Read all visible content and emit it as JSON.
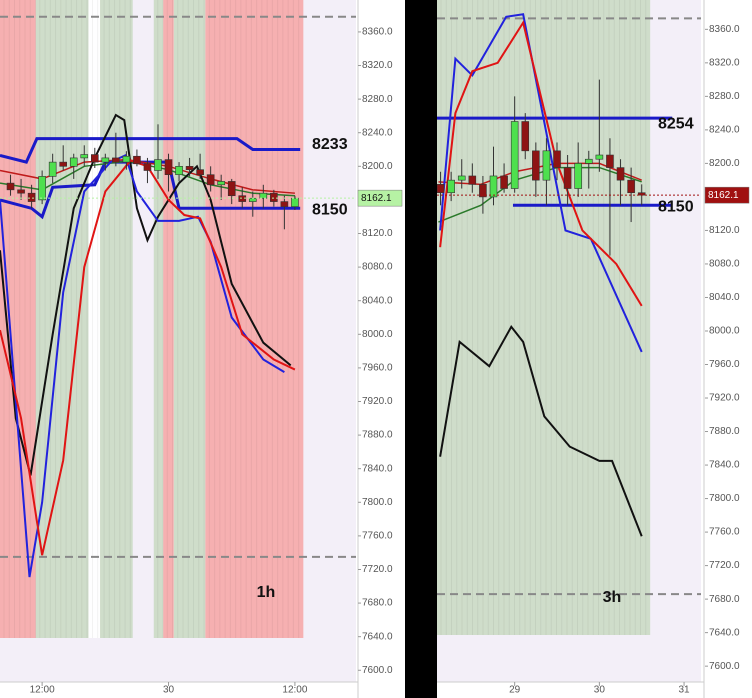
{
  "chart_data": [
    {
      "type": "candlestick",
      "label": "1h",
      "xlim": [
        8,
        41.8
      ],
      "ylim": [
        7567,
        8398
      ],
      "xticks": [
        {
          "value": 12,
          "label": "12:00"
        },
        {
          "value": 24,
          "label": "30"
        },
        {
          "value": 36,
          "label": "12:00"
        }
      ],
      "yticks": [
        {
          "value": 7600,
          "label": "7600.0"
        },
        {
          "value": 7640,
          "label": "7640.0"
        },
        {
          "value": 7680,
          "label": "7680.0"
        },
        {
          "value": 7720,
          "label": "7720.0"
        },
        {
          "value": 7760,
          "label": "7760.0"
        },
        {
          "value": 7800,
          "label": "7800.0"
        },
        {
          "value": 7840,
          "label": "7840.0"
        },
        {
          "value": 7880,
          "label": "7880.0"
        },
        {
          "value": 7920,
          "label": "7920.0"
        },
        {
          "value": 7960,
          "label": "7960.0"
        },
        {
          "value": 8000,
          "label": "8000.0"
        },
        {
          "value": 8040,
          "label": "8040.0"
        },
        {
          "value": 8080,
          "label": "8080.0"
        },
        {
          "value": 8120,
          "label": "8120.0"
        },
        {
          "value": 8160,
          "label": "8160.0"
        },
        {
          "value": 8200,
          "label": "8200.0"
        },
        {
          "value": 8240,
          "label": "8240.0"
        },
        {
          "value": 8280,
          "label": "8280.0"
        },
        {
          "value": 8320,
          "label": "8320.0"
        },
        {
          "value": 8360,
          "label": "8360.0"
        }
      ],
      "zones": [
        {
          "start": 8,
          "end": 11.4,
          "color": "#f6a9a9"
        },
        {
          "start": 11.4,
          "end": 16.4,
          "color": "#cbdac4"
        },
        {
          "start": 16.4,
          "end": 17.5,
          "color": "#ffffff"
        },
        {
          "start": 17.5,
          "end": 20.6,
          "color": "#cbdac4"
        },
        {
          "start": 22.6,
          "end": 23.5,
          "color": "#cbdac4"
        },
        {
          "start": 23.5,
          "end": 24.5,
          "color": "#f6a9a9"
        },
        {
          "start": 24.5,
          "end": 27.5,
          "color": "#cbdac4"
        },
        {
          "start": 27.5,
          "end": 36.8,
          "color": "#f6a9a9"
        }
      ],
      "x": [
        9,
        10,
        11,
        12,
        13,
        14,
        15,
        16,
        17,
        18,
        19,
        20,
        21,
        22,
        23,
        24,
        25,
        26,
        27,
        28,
        29,
        30,
        31,
        32,
        33,
        34,
        35,
        36
      ],
      "open": [
        8180,
        8172,
        8168,
        8160,
        8188,
        8205,
        8200,
        8210,
        8214,
        8205,
        8210,
        8205,
        8212,
        8203,
        8195,
        8208,
        8190,
        8200,
        8196,
        8190,
        8178,
        8182,
        8165,
        8158,
        8162,
        8168,
        8158,
        8152
      ],
      "high": [
        8190,
        8185,
        8178,
        8195,
        8215,
        8225,
        8215,
        8225,
        8222,
        8215,
        8240,
        8218,
        8220,
        8210,
        8250,
        8215,
        8205,
        8210,
        8215,
        8200,
        8190,
        8185,
        8175,
        8170,
        8178,
        8172,
        8165,
        8165
      ],
      "low": [
        8165,
        8160,
        8150,
        8155,
        8180,
        8195,
        8185,
        8200,
        8198,
        8195,
        8200,
        8196,
        8200,
        8180,
        8185,
        8170,
        8182,
        8188,
        8185,
        8170,
        8160,
        8155,
        8150,
        8140,
        8150,
        8152,
        8125,
        8148
      ],
      "close": [
        8172,
        8168,
        8158,
        8188,
        8205,
        8200,
        8210,
        8214,
        8205,
        8210,
        8205,
        8212,
        8203,
        8195,
        8208,
        8190,
        8200,
        8196,
        8190,
        8178,
        8182,
        8165,
        8158,
        8162,
        8168,
        8158,
        8152,
        8162.1
      ],
      "up_color": "#4ee04e",
      "down_color": "#8e1414",
      "dashed_levels": [
        8378,
        7735
      ],
      "levels": [
        8233,
        8150
      ],
      "last_price": 8162.1,
      "last_price_color": "#b6f2a4",
      "lines": [
        {
          "color": "#1a1ac8",
          "width": 3,
          "x": [
            8,
            10.5,
            11.5,
            30.5,
            32,
            36.5
          ],
          "values": [
            8213,
            8205,
            8233,
            8233,
            8220,
            8220
          ]
        },
        {
          "color": "#1a1ac8",
          "width": 3,
          "x": [
            8,
            11,
            12,
            13,
            17,
            18,
            24,
            25,
            36.5
          ],
          "values": [
            8160,
            8150,
            8140,
            8175,
            8178,
            8205,
            8205,
            8150,
            8150
          ]
        },
        {
          "color": "#c01a1a",
          "width": 1.5,
          "x": [
            8,
            12,
            16,
            20,
            24,
            28,
            32,
            36
          ],
          "values": [
            8195,
            8185,
            8205,
            8208,
            8200,
            8185,
            8172,
            8168
          ]
        },
        {
          "color": "#2a7a2a",
          "width": 1.5,
          "x": [
            8,
            12,
            16,
            20,
            24,
            28,
            32,
            36
          ],
          "values": [
            8180,
            8172,
            8200,
            8206,
            8196,
            8178,
            8168,
            8165
          ]
        },
        {
          "color": "#111111",
          "width": 2,
          "x": [
            8,
            9.5,
            10.9,
            13,
            15,
            17,
            19,
            19.8,
            21,
            22,
            23,
            25,
            26.7,
            28,
            30,
            33,
            35.6
          ],
          "values": [
            8100,
            7900,
            7832,
            8000,
            8150,
            8210,
            8261,
            8255,
            8150,
            8112,
            8140,
            8180,
            8200,
            8160,
            8060,
            7990,
            7963
          ]
        },
        {
          "color": "#2222dd",
          "width": 2,
          "x": [
            8,
            9,
            10.8,
            12,
            14,
            16,
            18.5,
            19.9,
            21,
            23,
            25,
            26.8,
            28,
            30,
            33,
            35
          ],
          "values": [
            8160,
            8000,
            7711,
            7800,
            8050,
            8170,
            8205,
            8213,
            8170,
            8135,
            8135,
            8140,
            8110,
            8020,
            7970,
            7955
          ]
        },
        {
          "color": "#e01414",
          "width": 2,
          "x": [
            8,
            10,
            12,
            14,
            16,
            18,
            20.4,
            22,
            24,
            25.5,
            27,
            29,
            31,
            34,
            36
          ],
          "values": [
            8005,
            7900,
            7737,
            7850,
            8080,
            8170,
            8207,
            8200,
            8160,
            8142,
            8138,
            8080,
            8000,
            7970,
            7958
          ]
        }
      ]
    },
    {
      "type": "candlestick",
      "label": "3h",
      "xlim": [
        28.083,
        31.2
      ],
      "ylim": [
        7562,
        8395
      ],
      "xticks": [
        29,
        30,
        31
      ],
      "yticks": [
        {
          "value": 7600,
          "label": "7600.0"
        },
        {
          "value": 7640,
          "label": "7640.0"
        },
        {
          "value": 7680,
          "label": "7680.0"
        },
        {
          "value": 7720,
          "label": "7720.0"
        },
        {
          "value": 7760,
          "label": "7760.0"
        },
        {
          "value": 7800,
          "label": "7800.0"
        },
        {
          "value": 7840,
          "label": "7840.0"
        },
        {
          "value": 7880,
          "label": "7880.0"
        },
        {
          "value": 7920,
          "label": "7920.0"
        },
        {
          "value": 7960,
          "label": "7960.0"
        },
        {
          "value": 8000,
          "label": "8000.0"
        },
        {
          "value": 8040,
          "label": "8040.0"
        },
        {
          "value": 8080,
          "label": "8080.0"
        },
        {
          "value": 8120,
          "label": "8120.0"
        },
        {
          "value": 8160,
          "label": "8160.0"
        },
        {
          "value": 8200,
          "label": "8200.0"
        },
        {
          "value": 8240,
          "label": "8240.0"
        },
        {
          "value": 8280,
          "label": "8280.0"
        },
        {
          "value": 8320,
          "label": "8320.0"
        },
        {
          "value": 8360,
          "label": "8360.0"
        }
      ],
      "zones": [
        {
          "start": 28.083,
          "end": 30.6,
          "color": "#cbdac4"
        }
      ],
      "x": [
        28.125,
        28.25,
        28.375,
        28.5,
        28.625,
        28.75,
        28.875,
        29,
        29.125,
        29.25,
        29.375,
        29.5,
        29.625,
        29.75,
        29.875,
        30,
        30.125,
        30.25,
        30.375,
        30.5
      ],
      "open": [
        8175,
        8165,
        8180,
        8185,
        8175,
        8160,
        8185,
        8170,
        8250,
        8215,
        8180,
        8215,
        8195,
        8170,
        8200,
        8205,
        8210,
        8195,
        8180,
        8165
      ],
      "high": [
        8190,
        8190,
        8205,
        8200,
        8185,
        8220,
        8200,
        8280,
        8260,
        8225,
        8230,
        8225,
        8210,
        8225,
        8215,
        8300,
        8230,
        8205,
        8195,
        8175
      ],
      "low": [
        8150,
        8155,
        8170,
        8165,
        8140,
        8150,
        8165,
        8165,
        8205,
        8160,
        8150,
        8180,
        8150,
        8160,
        8170,
        8190,
        8090,
        8150,
        8130,
        8150
      ],
      "close": [
        8165,
        8180,
        8185,
        8175,
        8160,
        8185,
        8170,
        8250,
        8215,
        8180,
        8215,
        8195,
        8170,
        8200,
        8205,
        8210,
        8195,
        8180,
        8165,
        8162.1
      ],
      "up_color": "#4ee04e",
      "down_color": "#8e1414",
      "dashed_levels": [
        8373,
        7686
      ],
      "levels": [
        8254,
        8150
      ],
      "last_price": 8162.1,
      "last_price_color": "#a01010",
      "lines": [
        {
          "color": "#1a1ac8",
          "width": 3,
          "x": [
            28.083,
            30.86
          ],
          "values": [
            8254,
            8254
          ]
        },
        {
          "color": "#1a1ac8",
          "width": 3,
          "x": [
            28.98,
            30.86
          ],
          "values": [
            8150,
            8150
          ]
        },
        {
          "color": "#c01a1a",
          "width": 1.5,
          "x": [
            28.1,
            28.6,
            29,
            29.5,
            30,
            30.5
          ],
          "values": [
            8178,
            8175,
            8190,
            8200,
            8200,
            8180
          ]
        },
        {
          "color": "#2a7a2a",
          "width": 1.5,
          "x": [
            28.1,
            28.6,
            29,
            29.5,
            30,
            30.5
          ],
          "values": [
            8130,
            8150,
            8180,
            8195,
            8195,
            8178
          ]
        },
        {
          "color": "#2222dd",
          "width": 2,
          "x": [
            28.12,
            28.3,
            28.5,
            28.9,
            29.1,
            29.6,
            29.9,
            30.5
          ],
          "values": [
            8120,
            8325,
            8305,
            8375,
            8378,
            8120,
            8110,
            7975
          ]
        },
        {
          "color": "#e01414",
          "width": 2,
          "x": [
            28.12,
            28.3,
            28.5,
            28.8,
            29.1,
            29.5,
            29.8,
            30.2,
            30.5
          ],
          "values": [
            8100,
            8260,
            8310,
            8320,
            8368,
            8200,
            8120,
            8080,
            8030
          ]
        },
        {
          "color": "#111111",
          "width": 2,
          "x": [
            28.12,
            28.35,
            28.7,
            28.96,
            29.1,
            29.35,
            29.65,
            30,
            30.15,
            30.5
          ],
          "values": [
            7850,
            7987,
            7958,
            8005,
            7987,
            7898,
            7862,
            7845,
            7845,
            7755
          ]
        }
      ]
    }
  ]
}
